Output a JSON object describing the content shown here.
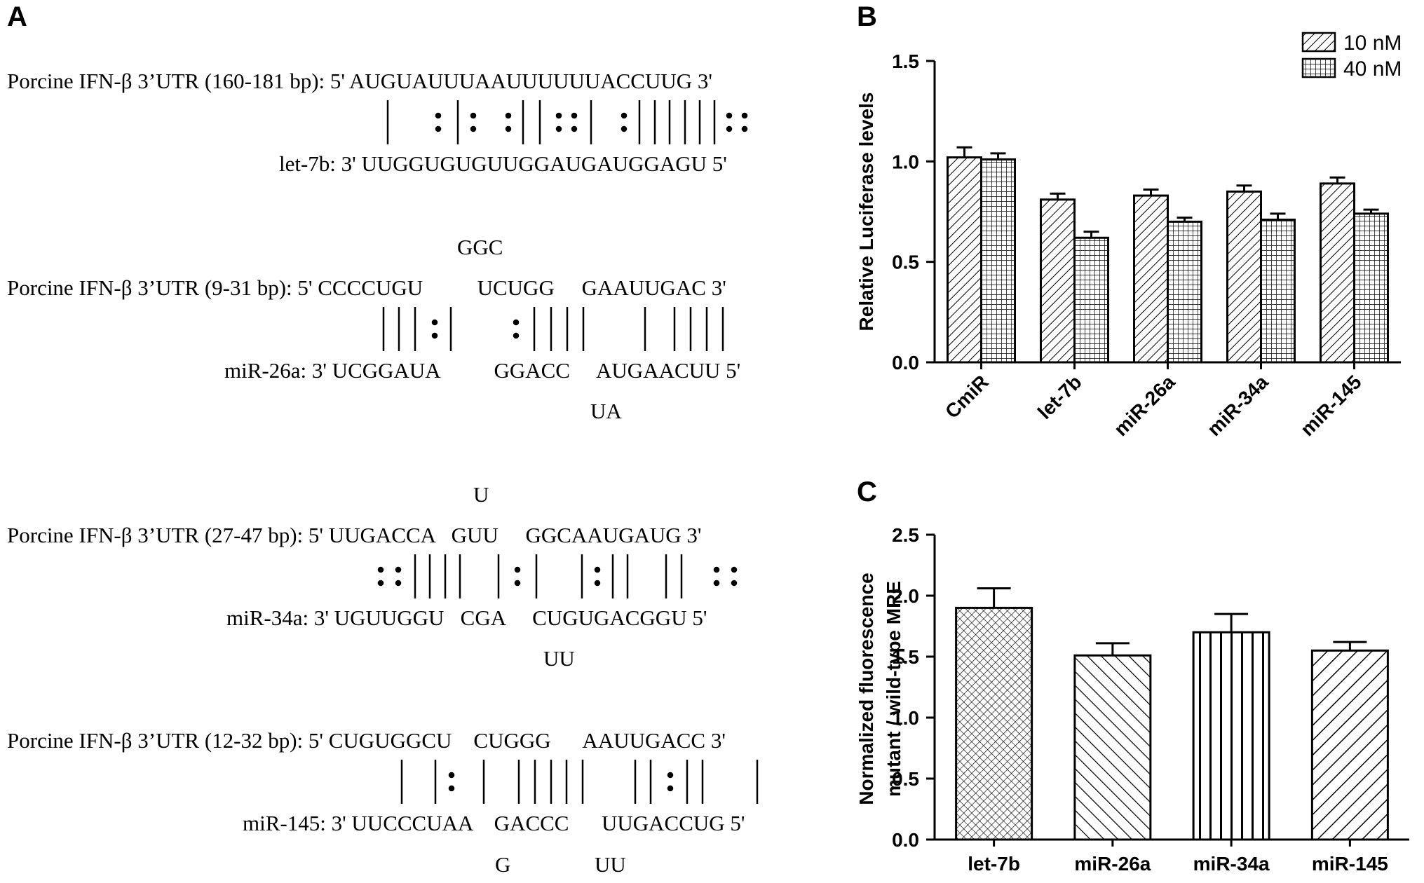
{
  "panelA": {
    "label": "A",
    "alignments": [
      {
        "top_label": "Porcine IFN-β 3’UTR (160-181 bp): 5' AUGUAUUUAAUUUUUUACCUUG 3'",
        "bottom_label": "let-7b: 3' UUGGUGUGUUGGAUGAUGGAGU 5'",
        "above": "",
        "below": ""
      },
      {
        "top_label": "Porcine IFN-β 3’UTR (9-31 bp): 5' CCCCUGU          UCUGG     GAAUUGAC 3'",
        "bottom_label": "miR-26a: 3' UCGGAUA          GGACC     AUGAACUU 5'",
        "above": "GGC",
        "below": "UA"
      },
      {
        "top_label": "Porcine IFN-β 3’UTR (27-47 bp): 5' UUGACCA   GUU     GGCAAUGAUG 3'",
        "bottom_label": "miR-34a: 3' UGUUGGU   CGA     CUGUGACGGU 5'",
        "above": "U",
        "below": "UU"
      },
      {
        "top_label": "Porcine IFN-β 3’UTR (12-32 bp): 5' CUGUGGCU    CUGGG      AAUUGACC 3'",
        "bottom_label": "miR-145: 3' UUCCCUAA    GACCC      UUGACCUG 5'",
        "above": "",
        "below_left": "G",
        "below_right": "UU"
      }
    ]
  },
  "chart_data": [
    {
      "panel": "B",
      "type": "bar",
      "ylabel": "Relative Luciferase levels",
      "xlabel": "",
      "categories": [
        "CmiR",
        "let-7b",
        "miR-26a",
        "miR-34a",
        "miR-145"
      ],
      "ylim": [
        0,
        1.5
      ],
      "yticks": [
        "0.0",
        "0.5",
        "1.0",
        "1.5"
      ],
      "legend_position": "top-right",
      "series": [
        {
          "name": "10 nM",
          "pattern": "diagonal-hatch",
          "values": [
            1.02,
            0.81,
            0.83,
            0.85,
            0.89
          ],
          "errors": [
            0.05,
            0.03,
            0.03,
            0.03,
            0.03
          ]
        },
        {
          "name": "40 nM",
          "pattern": "grid",
          "values": [
            1.01,
            0.62,
            0.7,
            0.71,
            0.74
          ],
          "errors": [
            0.03,
            0.03,
            0.02,
            0.03,
            0.02
          ]
        }
      ]
    },
    {
      "panel": "C",
      "type": "bar",
      "ylabel": "Normalized fluorescence mutant / wild-type MRE",
      "ylabel_lines": [
        "Normalized fluorescence",
        "mutant / wild-type MRE"
      ],
      "xlabel": "",
      "categories": [
        "let-7b",
        "miR-26a",
        "miR-34a",
        "miR-145"
      ],
      "ylim": [
        0,
        2.5
      ],
      "yticks": [
        "0.0",
        "0.5",
        "1.0",
        "1.5",
        "2.0",
        "2.5"
      ],
      "series": [
        {
          "values": [
            1.9,
            1.51,
            1.7,
            1.55
          ],
          "errors": [
            0.16,
            0.1,
            0.15,
            0.07
          ],
          "patterns": [
            "crosshatch",
            "back-diagonal",
            "vertical",
            "forward-diagonal"
          ]
        }
      ]
    }
  ],
  "colors": {
    "ink": "#000000",
    "background": "#ffffff"
  }
}
